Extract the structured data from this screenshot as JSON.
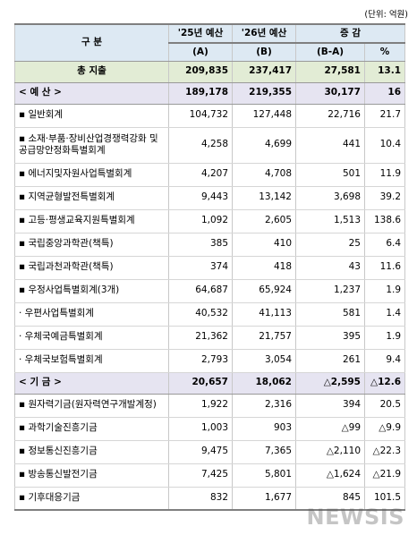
{
  "unit_label": "(단위: 억원)",
  "header": {
    "category": "구    분",
    "col_2025": "'25년 예산",
    "col_2025_sub": "(A)",
    "col_2026": "'26년 예산",
    "col_2026_sub": "(B)",
    "col_change": "증 감",
    "col_diff": "(B-A)",
    "col_pct": "%"
  },
  "total": {
    "label": "총 지출",
    "v2025": "209,835",
    "v2026": "237,417",
    "diff": "27,581",
    "pct": "13.1"
  },
  "budget_header": {
    "label": "< 예 산 >",
    "v2025": "189,178",
    "v2026": "219,355",
    "diff": "30,177",
    "pct": "16"
  },
  "budget_rows": [
    {
      "label": "▪ 일반회계",
      "v2025": "104,732",
      "v2026": "127,448",
      "diff": "22,716",
      "pct": "21.7"
    },
    {
      "label": "▪ 소재·부품·장비산업경쟁력강화 및 공급망안정화특별회계",
      "v2025": "4,258",
      "v2026": "4,699",
      "diff": "441",
      "pct": "10.4"
    },
    {
      "label": "▪ 에너지및자원사업특별회계",
      "v2025": "4,207",
      "v2026": "4,708",
      "diff": "501",
      "pct": "11.9"
    },
    {
      "label": "▪ 지역균형발전특별회계",
      "v2025": "9,443",
      "v2026": "13,142",
      "diff": "3,698",
      "pct": "39.2"
    },
    {
      "label": "▪ 고등·평생교육지원특별회계",
      "v2025": "1,092",
      "v2026": "2,605",
      "diff": "1,513",
      "pct": "138.6"
    },
    {
      "label": "▪ 국립중앙과학관(책특)",
      "v2025": "385",
      "v2026": "410",
      "diff": "25",
      "pct": "6.4"
    },
    {
      "label": "▪ 국립과천과학관(책특)",
      "v2025": "374",
      "v2026": "418",
      "diff": "43",
      "pct": "11.6"
    },
    {
      "label": "▪ 우정사업특별회계(3개)",
      "v2025": "64,687",
      "v2026": "65,924",
      "diff": "1,237",
      "pct": "1.9"
    },
    {
      "label": "· 우편사업특별회계",
      "v2025": "40,532",
      "v2026": "41,113",
      "diff": "581",
      "pct": "1.4"
    },
    {
      "label": "· 우체국예금특별회계",
      "v2025": "21,362",
      "v2026": "21,757",
      "diff": "395",
      "pct": "1.9"
    },
    {
      "label": "· 우체국보험특별회계",
      "v2025": "2,793",
      "v2026": "3,054",
      "diff": "261",
      "pct": "9.4"
    }
  ],
  "fund_header": {
    "label": "< 기 금 >",
    "v2025": "20,657",
    "v2026": "18,062",
    "diff": "△2,595",
    "pct": "△12.6"
  },
  "fund_rows": [
    {
      "label": "▪ 원자력기금(원자력연구개발계정)",
      "v2025": "1,922",
      "v2026": "2,316",
      "diff": "394",
      "pct": "20.5"
    },
    {
      "label": "▪ 과학기술진흥기금",
      "v2025": "1,003",
      "v2026": "903",
      "diff": "△99",
      "pct": "△9.9"
    },
    {
      "label": "▪ 정보통신진흥기금",
      "v2025": "9,475",
      "v2026": "7,365",
      "diff": "△2,110",
      "pct": "△22.3"
    },
    {
      "label": "▪ 방송통신발전기금",
      "v2025": "7,425",
      "v2026": "5,801",
      "diff": "△1,624",
      "pct": "△21.9"
    },
    {
      "label": "▪ 기후대응기금",
      "v2025": "832",
      "v2026": "1,677",
      "diff": "845",
      "pct": "101.5"
    }
  ],
  "watermark": "NEWSIS"
}
